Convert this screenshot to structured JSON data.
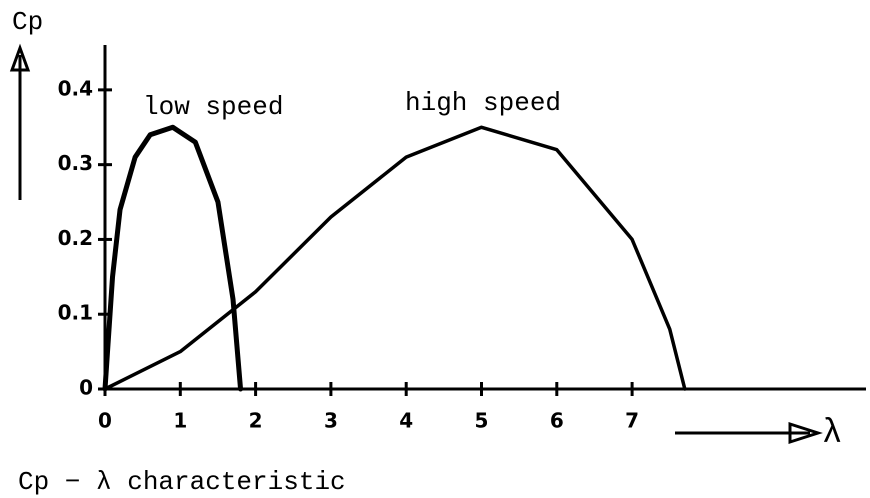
{
  "chart_data": {
    "type": "line",
    "title": "Cp − λ characteristic",
    "x_label": "λ",
    "y_label": "Cp",
    "xlim": [
      0,
      10
    ],
    "xticks": [
      0,
      1,
      2,
      3,
      4,
      5,
      6,
      7
    ],
    "ylim": [
      0,
      0.46
    ],
    "yticks": [
      0,
      0.1,
      0.2,
      0.3,
      0.4
    ],
    "series": [
      {
        "name": "low speed",
        "color": "#000000",
        "x": [
          0,
          0.1,
          0.2,
          0.4,
          0.6,
          0.9,
          1.2,
          1.5,
          1.7,
          1.8
        ],
        "values": [
          0,
          0.15,
          0.24,
          0.31,
          0.34,
          0.35,
          0.33,
          0.25,
          0.12,
          0
        ]
      },
      {
        "name": "high speed",
        "color": "#000000",
        "x": [
          0,
          1,
          2,
          3,
          4,
          5,
          6,
          7,
          7.5,
          7.7
        ],
        "values": [
          0,
          0.05,
          0.13,
          0.23,
          0.31,
          0.35,
          0.32,
          0.2,
          0.08,
          0
        ]
      }
    ]
  }
}
